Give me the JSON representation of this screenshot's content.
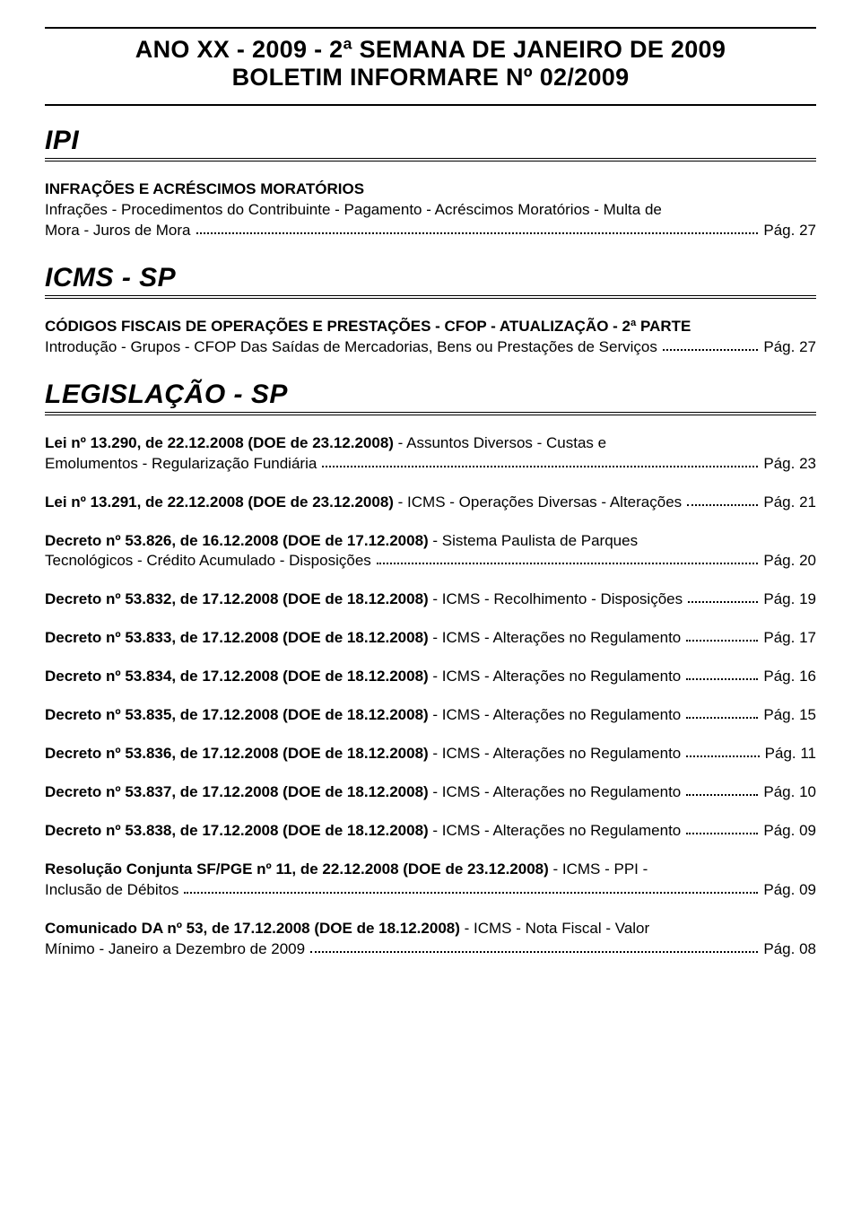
{
  "header": {
    "line1": "ANO XX - 2009 - 2ª SEMANA DE JANEIRO DE 2009",
    "line2": "BOLETIM INFORMARE Nº 02/2009"
  },
  "sections": [
    {
      "title": "IPI",
      "entries": [
        {
          "bold": "INFRAÇÕES E ACRÉSCIMOS MORATÓRIOS",
          "pre": "Infrações - Procedimentos do Contribuinte - Pagamento - Acréscimos Moratórios - Multa de",
          "last": "Mora - Juros de Mora",
          "page": "Pág. 27"
        }
      ]
    },
    {
      "title": "ICMS - SP",
      "entries": [
        {
          "bold": "CÓDIGOS FISCAIS DE OPERAÇÕES E PRESTAÇÕES - CFOP - ATUALIZAÇÃO - 2ª PARTE",
          "last": "Introdução - Grupos - CFOP Das Saídas de Mercadorias, Bens ou Prestações de Serviços",
          "page": "Pág. 27"
        }
      ]
    },
    {
      "title": "LEGISLAÇÃO - SP",
      "entries": [
        {
          "bold_inline": "Lei nº 13.290, de 22.12.2008 (DOE de 23.12.2008)",
          "rest_pre": " - Assuntos Diversos - Custas e",
          "last": "Emolumentos - Regularização Fundiária",
          "page": "Pág. 23"
        },
        {
          "bold_inline": "Lei nº 13.291, de 22.12.2008 (DOE de 23.12.2008)",
          "last": " - ICMS - Operações Diversas - Alterações",
          "page": "Pág. 21"
        },
        {
          "bold_inline": "Decreto nº 53.826, de 16.12.2008 (DOE de 17.12.2008)",
          "rest_pre": " - Sistema Paulista de Parques",
          "last": "Tecnológicos - Crédito Acumulado - Disposições",
          "page": "Pág. 20"
        },
        {
          "bold_inline": "Decreto nº 53.832, de 17.12.2008 (DOE de 18.12.2008)",
          "last": " - ICMS - Recolhimento - Disposições",
          "page": "Pág. 19"
        },
        {
          "bold_inline": "Decreto nº 53.833, de 17.12.2008 (DOE de 18.12.2008)",
          "last": " - ICMS - Alterações no Regulamento",
          "page": "Pág. 17"
        },
        {
          "bold_inline": "Decreto nº 53.834, de 17.12.2008 (DOE de 18.12.2008)",
          "last": " - ICMS - Alterações no Regulamento",
          "page": "Pág. 16"
        },
        {
          "bold_inline": "Decreto nº 53.835, de 17.12.2008 (DOE de 18.12.2008)",
          "last": " - ICMS - Alterações no Regulamento",
          "page": "Pág. 15"
        },
        {
          "bold_inline": "Decreto nº 53.836, de 17.12.2008 (DOE de 18.12.2008)",
          "last": " - ICMS - Alterações no Regulamento",
          "page": "Pág. 11"
        },
        {
          "bold_inline": "Decreto nº 53.837, de 17.12.2008 (DOE de 18.12.2008)",
          "last": " - ICMS - Alterações no Regulamento",
          "page": "Pág. 10"
        },
        {
          "bold_inline": "Decreto nº 53.838, de 17.12.2008 (DOE de 18.12.2008)",
          "last": " - ICMS - Alterações no Regulamento",
          "page": "Pág. 09"
        },
        {
          "bold_inline": "Resolução Conjunta SF/PGE nº 11, de 22.12.2008 (DOE de 23.12.2008)",
          "rest_pre": " - ICMS - PPI -",
          "last": "Inclusão de Débitos",
          "page": "Pág. 09"
        },
        {
          "bold_inline": "Comunicado DA nº 53, de 17.12.2008 (DOE de 18.12.2008)",
          "rest_pre": " - ICMS - Nota Fiscal - Valor",
          "last": "Mínimo - Janeiro a Dezembro de 2009",
          "page": "Pág. 08"
        }
      ]
    }
  ]
}
